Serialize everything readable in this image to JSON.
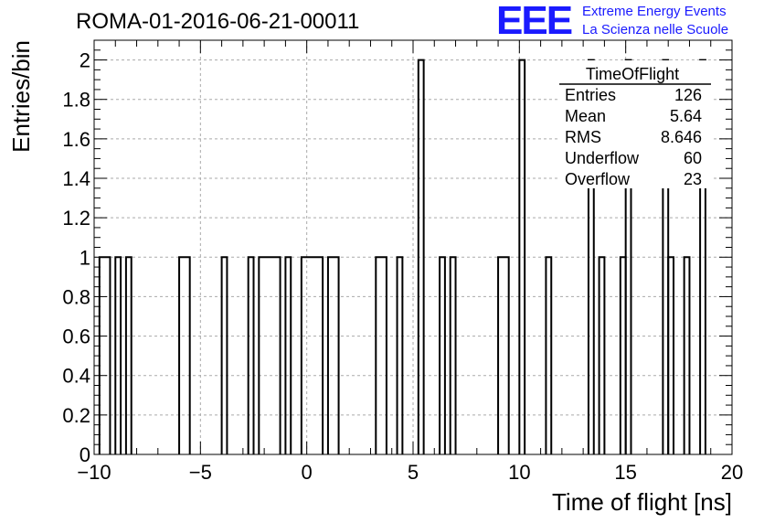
{
  "header": {
    "title": "ROMA-01-2016-06-21-00011",
    "logo_text": "EEE",
    "logo_line1": "Extreme Energy Events",
    "logo_line2": "La Scienza nelle Scuole",
    "logo_color": "#1a1aff"
  },
  "chart_data": {
    "type": "histogram",
    "title": "ROMA-01-2016-06-21-00011",
    "xlabel": "Time of flight [ns]",
    "ylabel": "Entries/bin",
    "xlim": [
      -10,
      20
    ],
    "ylim": [
      0,
      2.1
    ],
    "grid": true,
    "bin_width": 0.25,
    "bins": [
      {
        "x0": -9.75,
        "x1": -9.25,
        "count": 1
      },
      {
        "x0": -9.0,
        "x1": -8.75,
        "count": 1
      },
      {
        "x0": -8.5,
        "x1": -8.25,
        "count": 1
      },
      {
        "x0": -6.0,
        "x1": -5.5,
        "count": 1
      },
      {
        "x0": -4.0,
        "x1": -3.75,
        "count": 1
      },
      {
        "x0": -2.75,
        "x1": -2.5,
        "count": 1
      },
      {
        "x0": -2.25,
        "x1": -1.25,
        "count": 1
      },
      {
        "x0": -1.0,
        "x1": -0.75,
        "count": 1
      },
      {
        "x0": -0.25,
        "x1": 0.75,
        "count": 1
      },
      {
        "x0": 1.0,
        "x1": 1.5,
        "count": 1
      },
      {
        "x0": 3.25,
        "x1": 3.75,
        "count": 1
      },
      {
        "x0": 4.25,
        "x1": 4.5,
        "count": 1
      },
      {
        "x0": 5.25,
        "x1": 5.5,
        "count": 2
      },
      {
        "x0": 6.25,
        "x1": 6.5,
        "count": 1
      },
      {
        "x0": 6.75,
        "x1": 7.0,
        "count": 1
      },
      {
        "x0": 9.0,
        "x1": 9.5,
        "count": 1
      },
      {
        "x0": 10.0,
        "x1": 10.25,
        "count": 2
      },
      {
        "x0": 11.25,
        "x1": 11.5,
        "count": 1
      },
      {
        "x0": 13.25,
        "x1": 13.5,
        "count": 2
      },
      {
        "x0": 13.75,
        "x1": 14.0,
        "count": 1
      },
      {
        "x0": 14.75,
        "x1": 15.0,
        "count": 1
      },
      {
        "x0": 15.0,
        "x1": 15.25,
        "count": 2
      },
      {
        "x0": 16.75,
        "x1": 17.0,
        "count": 2
      },
      {
        "x0": 17.0,
        "x1": 17.25,
        "count": 1
      },
      {
        "x0": 17.75,
        "x1": 18.0,
        "count": 1
      },
      {
        "x0": 18.5,
        "x1": 18.75,
        "count": 2
      }
    ],
    "x_ticks": [
      {
        "value": -10,
        "label": "−10"
      },
      {
        "value": -5,
        "label": "−5"
      },
      {
        "value": 0,
        "label": "0"
      },
      {
        "value": 5,
        "label": "5"
      },
      {
        "value": 10,
        "label": "10"
      },
      {
        "value": 15,
        "label": "15"
      },
      {
        "value": 20,
        "label": "20"
      }
    ],
    "y_ticks": [
      {
        "value": 0,
        "label": "0"
      },
      {
        "value": 0.2,
        "label": "0.2"
      },
      {
        "value": 0.4,
        "label": "0.4"
      },
      {
        "value": 0.6,
        "label": "0.6"
      },
      {
        "value": 0.8,
        "label": "0.8"
      },
      {
        "value": 1,
        "label": "1"
      },
      {
        "value": 1.2,
        "label": "1.2"
      },
      {
        "value": 1.4,
        "label": "1.4"
      },
      {
        "value": 1.6,
        "label": "1.6"
      },
      {
        "value": 1.8,
        "label": "1.8"
      },
      {
        "value": 2,
        "label": "2"
      }
    ],
    "stats_box": {
      "title": "TimeOfFlight",
      "rows": [
        {
          "label": "Entries",
          "value": "126"
        },
        {
          "label": "Mean",
          "value": "5.64"
        },
        {
          "label": "RMS",
          "value": "8.646"
        },
        {
          "label": "Underflow",
          "value": "60"
        },
        {
          "label": "Overflow",
          "value": "23"
        }
      ]
    }
  }
}
